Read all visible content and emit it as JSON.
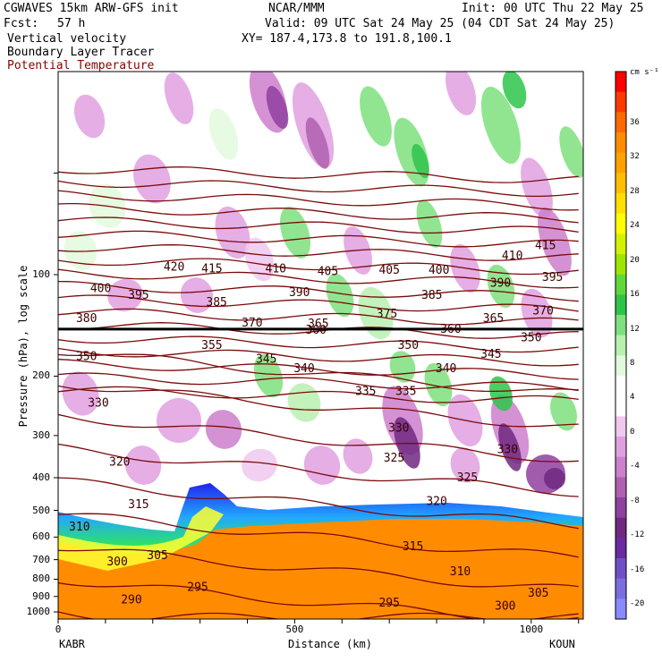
{
  "header": {
    "model": "CGWAVES 15km ARW-GFS init",
    "center": "NCAR/MMM",
    "init": "Init: 00 UTC Thu 22 May 25",
    "fcst_label": "Fcst:",
    "fcst_value": "57 h",
    "valid": "Valid: 09 UTC Sat 24 May 25 (04 CDT Sat 24 May 25)",
    "xy": "XY= 187.4,173.8 to 191.8,100.1",
    "field1": "Vertical velocity",
    "field2": "Boundary Layer Tracer",
    "field3": "Potential Temperature"
  },
  "colors": {
    "theta_line": "#7a0a0a",
    "tropopause_line": "#000000",
    "field3_text": "#8b0000"
  },
  "chart_data": {
    "type": "cross-section",
    "xlabel": "Distance (km)",
    "ylabel": "Pressure (hPa), log scale",
    "x_range": [
      0,
      1110
    ],
    "x_ticks": [
      {
        "value": 0,
        "label": "0"
      },
      {
        "value": 500,
        "label": "500"
      },
      {
        "value": 1000,
        "label": "1000"
      }
    ],
    "endpoints": {
      "left": "KABR",
      "right": "KOUN"
    },
    "y_scale": "log",
    "y_range": [
      1050,
      25
    ],
    "y_ticks": [
      {
        "value": 100,
        "label": "100"
      },
      {
        "value": 200,
        "label": "200"
      },
      {
        "value": 300,
        "label": "300"
      },
      {
        "value": 400,
        "label": "400"
      },
      {
        "value": 500,
        "label": "500"
      },
      {
        "value": 600,
        "label": "600"
      },
      {
        "value": 700,
        "label": "700"
      },
      {
        "value": 800,
        "label": "800"
      },
      {
        "value": 900,
        "label": "900"
      },
      {
        "value": 1000,
        "label": "1000"
      }
    ],
    "colorbar": {
      "units": "cm s⁻¹",
      "labels": [
        "36",
        "32",
        "28",
        "24",
        "20",
        "16",
        "12",
        "8",
        "4",
        "0",
        "-4",
        "-8",
        "-12",
        "-16",
        "-20"
      ],
      "colors": [
        "#ff0000",
        "#ff3a00",
        "#ff6a00",
        "#ff8c00",
        "#ffa200",
        "#ffbf00",
        "#ffe000",
        "#ffff00",
        "#d4f200",
        "#9ee600",
        "#5fd93a",
        "#2ec44a",
        "#7ee07e",
        "#b8f0b0",
        "#e2fadc",
        "#ffffff",
        "#ffffff",
        "#f0c8f0",
        "#e0a0e0",
        "#cc7fcc",
        "#b060b0",
        "#9040a0",
        "#702880",
        "#6a2aa0",
        "#7050c8",
        "#7a6ee0",
        "#8a8aff"
      ]
    },
    "theta_labels": [
      {
        "x": 290,
        "p": 920,
        "label": "290"
      },
      {
        "x": 295,
        "p": 840,
        "label": "295"
      },
      {
        "x": 300,
        "p": 730,
        "label": "300"
      },
      {
        "x": 305,
        "p": 700,
        "label": "305"
      },
      {
        "x": 310,
        "p": 550,
        "label": "310"
      },
      {
        "x": 315,
        "p": 470,
        "label": "315"
      },
      {
        "x": 320,
        "p": 355,
        "label": "320"
      },
      {
        "x": 325,
        "p": 345,
        "label": "325"
      },
      {
        "x": 330,
        "p": 235,
        "label": "330"
      },
      {
        "x": 335,
        "p": 222,
        "label": "335"
      },
      {
        "x": 340,
        "p": 185,
        "label": "340"
      },
      {
        "x": 345,
        "p": 180,
        "label": "345"
      },
      {
        "x": 350,
        "p": 180,
        "label": "350"
      },
      {
        "x": 355,
        "p": 165,
        "label": "355"
      },
      {
        "x": 360,
        "p": 155,
        "label": "360"
      },
      {
        "x": 365,
        "p": 150,
        "label": "365"
      },
      {
        "x": 370,
        "p": 140,
        "label": "370"
      },
      {
        "x": 375,
        "p": 135,
        "label": "375"
      },
      {
        "x": 380,
        "p": 145,
        "label": "380"
      },
      {
        "x": 385,
        "p": 120,
        "label": "385"
      },
      {
        "x": 390,
        "p": 110,
        "label": "390"
      },
      {
        "x": 395,
        "p": 115,
        "label": "395"
      },
      {
        "x": 400,
        "p": 105,
        "label": "400"
      },
      {
        "x": 405,
        "p": 95,
        "label": "405"
      },
      {
        "x": 410,
        "p": 90,
        "label": "410"
      },
      {
        "x": 415,
        "p": 85,
        "label": "415"
      },
      {
        "x": 420,
        "p": 85,
        "label": "420"
      }
    ],
    "theta_label_positions": [
      {
        "text": "290",
        "x": 155,
        "p": 920
      },
      {
        "text": "295",
        "x": 295,
        "p": 845
      },
      {
        "text": "295",
        "x": 700,
        "p": 940
      },
      {
        "text": "300",
        "x": 125,
        "p": 710
      },
      {
        "text": "300",
        "x": 945,
        "p": 960
      },
      {
        "text": "305",
        "x": 210,
        "p": 680
      },
      {
        "text": "305",
        "x": 1015,
        "p": 880
      },
      {
        "text": "310",
        "x": 45,
        "p": 560
      },
      {
        "text": "310",
        "x": 850,
        "p": 760
      },
      {
        "text": "315",
        "x": 170,
        "p": 480
      },
      {
        "text": "315",
        "x": 750,
        "p": 640
      },
      {
        "text": "320",
        "x": 130,
        "p": 360
      },
      {
        "text": "320",
        "x": 800,
        "p": 470
      },
      {
        "text": "325",
        "x": 710,
        "p": 350
      },
      {
        "text": "325",
        "x": 865,
        "p": 400
      },
      {
        "text": "330",
        "x": 85,
        "p": 240
      },
      {
        "text": "330",
        "x": 720,
        "p": 285
      },
      {
        "text": "330",
        "x": 950,
        "p": 330
      },
      {
        "text": "335",
        "x": 650,
        "p": 222
      },
      {
        "text": "335",
        "x": 735,
        "p": 222
      },
      {
        "text": "340",
        "x": 520,
        "p": 190
      },
      {
        "text": "340",
        "x": 820,
        "p": 190
      },
      {
        "text": "345",
        "x": 440,
        "p": 178
      },
      {
        "text": "345",
        "x": 915,
        "p": 172
      },
      {
        "text": "350",
        "x": 60,
        "p": 175
      },
      {
        "text": "350",
        "x": 740,
        "p": 162
      },
      {
        "text": "350",
        "x": 1000,
        "p": 154
      },
      {
        "text": "355",
        "x": 325,
        "p": 162
      },
      {
        "text": "360",
        "x": 545,
        "p": 146
      },
      {
        "text": "360",
        "x": 830,
        "p": 145
      },
      {
        "text": "365",
        "x": 550,
        "p": 140
      },
      {
        "text": "365",
        "x": 920,
        "p": 135
      },
      {
        "text": "370",
        "x": 410,
        "p": 139
      },
      {
        "text": "370",
        "x": 1025,
        "p": 128
      },
      {
        "text": "375",
        "x": 695,
        "p": 131
      },
      {
        "text": "380",
        "x": 60,
        "p": 135
      },
      {
        "text": "385",
        "x": 335,
        "p": 121
      },
      {
        "text": "385",
        "x": 790,
        "p": 115
      },
      {
        "text": "390",
        "x": 510,
        "p": 113
      },
      {
        "text": "390",
        "x": 935,
        "p": 106
      },
      {
        "text": "395",
        "x": 170,
        "p": 115
      },
      {
        "text": "395",
        "x": 1045,
        "p": 102
      },
      {
        "text": "400",
        "x": 90,
        "p": 110
      },
      {
        "text": "400",
        "x": 805,
        "p": 97
      },
      {
        "text": "405",
        "x": 570,
        "p": 98
      },
      {
        "text": "405",
        "x": 700,
        "p": 97
      },
      {
        "text": "410",
        "x": 460,
        "p": 96
      },
      {
        "text": "410",
        "x": 960,
        "p": 88
      },
      {
        "text": "415",
        "x": 325,
        "p": 96
      },
      {
        "text": "415",
        "x": 1030,
        "p": 82
      },
      {
        "text": "420",
        "x": 245,
        "p": 95
      }
    ],
    "tropopause_p": 145,
    "inline_label": "350"
  }
}
